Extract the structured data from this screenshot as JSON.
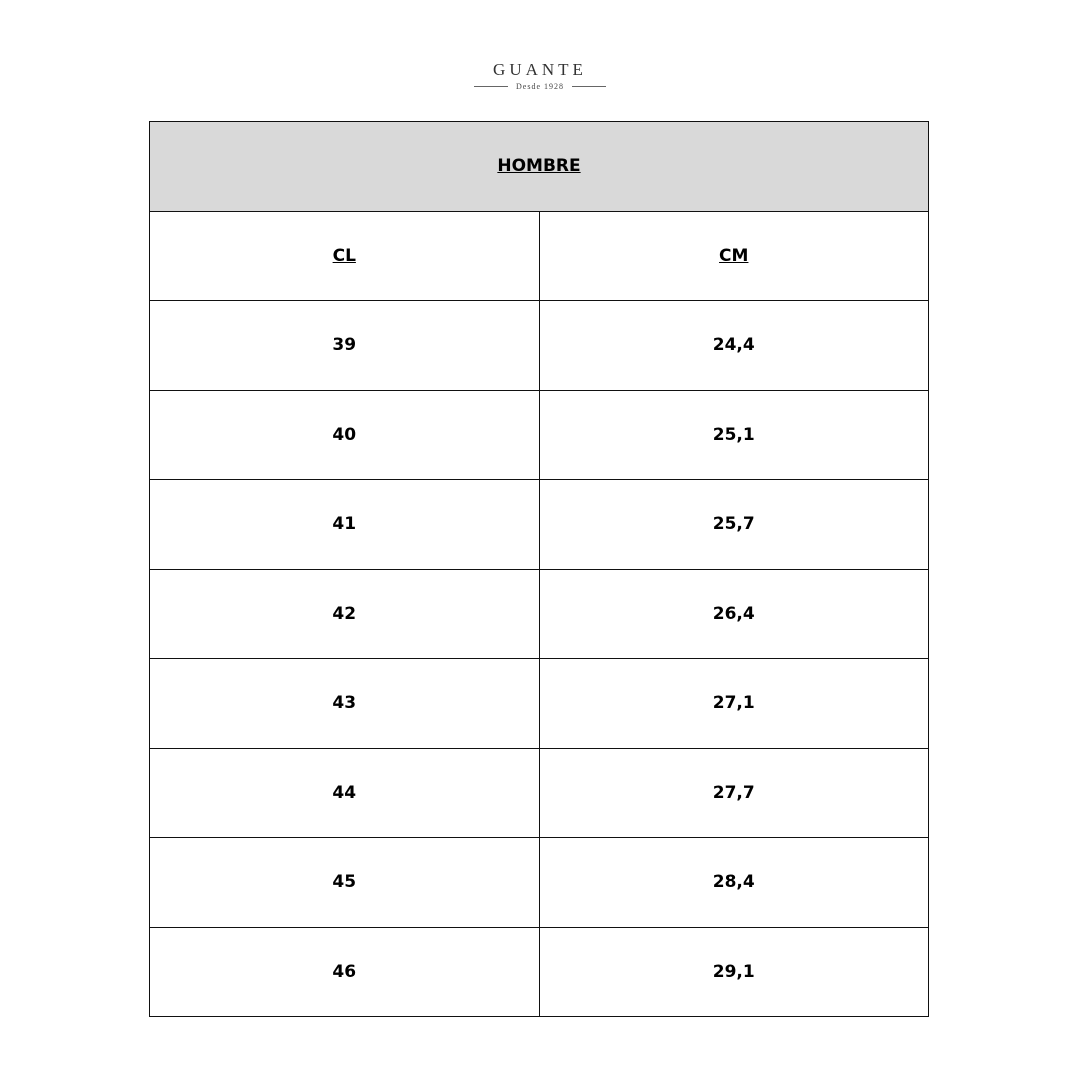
{
  "logo": {
    "brand": "GUANTE",
    "tagline": "Desde 1928"
  },
  "table": {
    "title": "HOMBRE",
    "headers": [
      "CL",
      "CM"
    ],
    "rows": [
      [
        "39",
        "24,4"
      ],
      [
        "40",
        "25,1"
      ],
      [
        "41",
        "25,7"
      ],
      [
        "42",
        "26,4"
      ],
      [
        "43",
        "27,1"
      ],
      [
        "44",
        "27,7"
      ],
      [
        "45",
        "28,4"
      ],
      [
        "46",
        "29,1"
      ]
    ],
    "header_bg": "#d9d9d9"
  }
}
